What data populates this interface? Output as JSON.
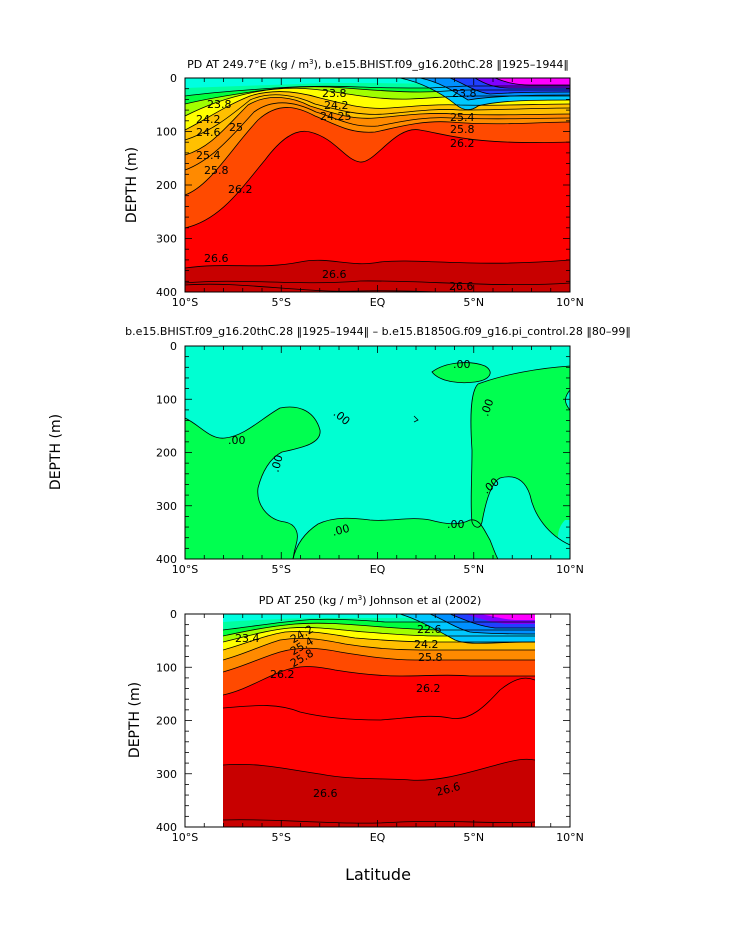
{
  "figure": {
    "xlabel": "Latitude"
  },
  "chart_data": [
    {
      "type": "heatmap",
      "title_html": "PD AT 249.7°E (kg / m<sup>3</sup>), b.e15.BHIST.f09_g16.20thC.28 ‖1925–1944‖",
      "title": "PD AT 249.7°E (kg / m3), b.e15.BHIST.f09_g16.20thC.28 ‖1925–1944‖",
      "ylabel": "DEPTH (m)",
      "x_ticks": [
        "10°S",
        "5°S",
        "EQ",
        "5°N",
        "10°N"
      ],
      "y_ticks": [
        "0",
        "100",
        "200",
        "300",
        "400"
      ],
      "xlim": [
        -10,
        10
      ],
      "ylim": [
        0,
        400
      ],
      "contour_labels": [
        "23.8",
        "23.8",
        "23.8",
        "24.2",
        "24.2",
        "24.6",
        "25",
        "25.4",
        "25.8",
        "25.8",
        "26.2",
        "26.2",
        "24.25",
        "25.4",
        "26.6",
        "26.6",
        "26.6"
      ],
      "data_range": [
        23.4,
        26.8
      ]
    },
    {
      "type": "heatmap",
      "title": "b.e15.BHIST.f09_g16.20thC.28 ‖1925–1944‖ – b.e15.B1850G.f09_g16.pi_control.28 ‖80–99‖",
      "ylabel": "DEPTH (m)",
      "x_ticks": [
        "10°S",
        "5°S",
        "EQ",
        "5°N",
        "10°N"
      ],
      "y_ticks": [
        "0",
        "100",
        "200",
        "300",
        "400"
      ],
      "xlim": [
        -10,
        10
      ],
      "ylim": [
        0,
        400
      ],
      "contour_labels": [
        ".00",
        ".00",
        ".00",
        ".00",
        ".00",
        ".00",
        ".00",
        ".00"
      ]
    },
    {
      "type": "heatmap",
      "title_html": "PD AT 250 (kg / m<sup>3</sup>) Johnson et al (2002)",
      "title": "PD AT 250 (kg / m3) Johnson et al (2002)",
      "ylabel": "DEPTH (m)",
      "x_ticks": [
        "10°S",
        "5°S",
        "EQ",
        "5°N",
        "10°N"
      ],
      "y_ticks": [
        "0",
        "100",
        "200",
        "300",
        "400"
      ],
      "xlim": [
        -10,
        10
      ],
      "ylim": [
        0,
        400
      ],
      "data_xlim": [
        -8,
        8.2
      ],
      "contour_labels": [
        "23.4",
        "24.2",
        "25.4",
        "25.8",
        "26.2",
        "26.2",
        "22.6",
        "24.2",
        "25.8",
        "26.6",
        "26.6"
      ],
      "data_range": [
        22.6,
        26.8
      ]
    }
  ]
}
